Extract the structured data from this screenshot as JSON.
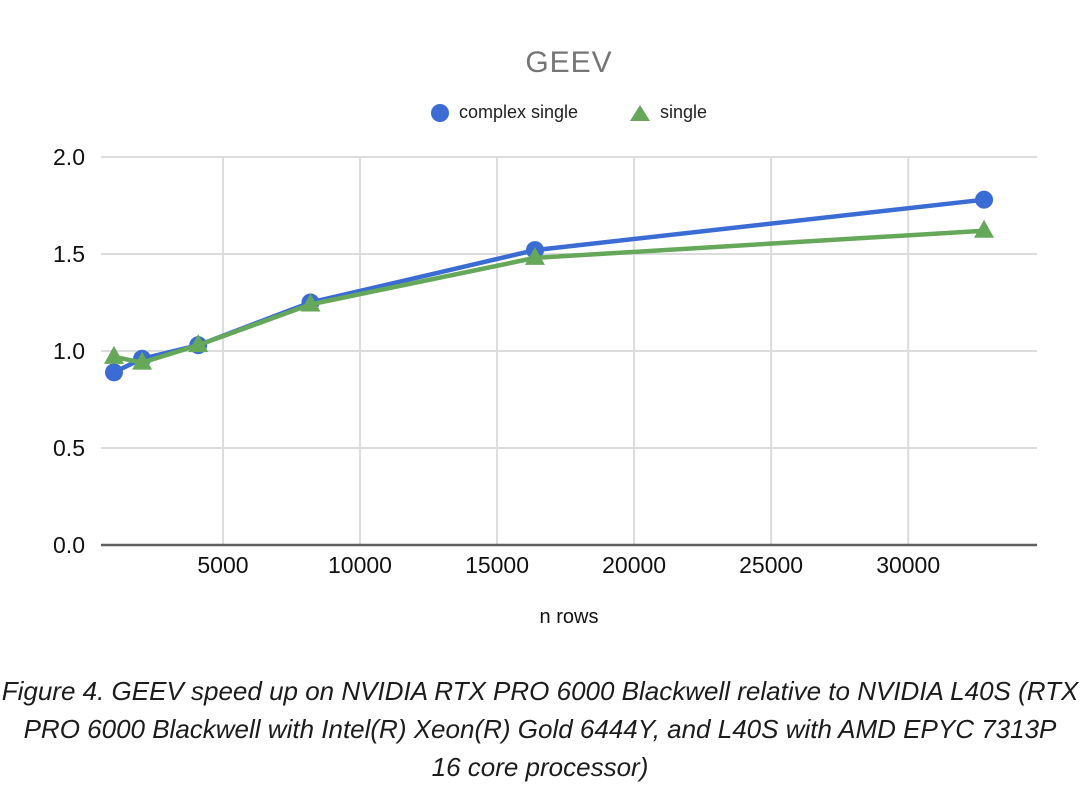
{
  "page": {
    "background": "#ffffff"
  },
  "chart_data": {
    "type": "line",
    "title": "GEEV",
    "title_color": "#757575",
    "xlabel": "n rows",
    "ylabel": "",
    "x": [
      1024,
      2048,
      4096,
      8192,
      16384,
      32768
    ],
    "series": [
      {
        "name": "complex single",
        "marker": "circle",
        "color": "#3b6cd3",
        "values": [
          0.89,
          0.96,
          1.03,
          1.25,
          1.52,
          1.78
        ]
      },
      {
        "name": "single",
        "marker": "triangle",
        "color": "#65a85a",
        "values": [
          0.97,
          0.94,
          1.03,
          1.24,
          1.48,
          1.62
        ]
      }
    ],
    "x_ticks": [
      5000,
      10000,
      15000,
      20000,
      25000,
      30000
    ],
    "y_ticks": [
      0.0,
      0.5,
      1.0,
      1.5,
      2.0
    ],
    "xlim": [
      550,
      34700
    ],
    "ylim": [
      0,
      2
    ],
    "grid": true,
    "legend_position": "top",
    "gridline_color": "#dcdcdc",
    "axis_line_color": "#5f5f5f",
    "tick_label_color": "#111111"
  },
  "caption": {
    "lines": [
      "Figure 4. GEEV speed up on NVIDIA RTX PRO 6000 Blackwell relative to NVIDIA L40S (RTX",
      "PRO 6000 Blackwell with Intel(R) Xeon(R) Gold 6444Y, and L40S with AMD EPYC 7313P",
      "16 core processor)"
    ]
  }
}
